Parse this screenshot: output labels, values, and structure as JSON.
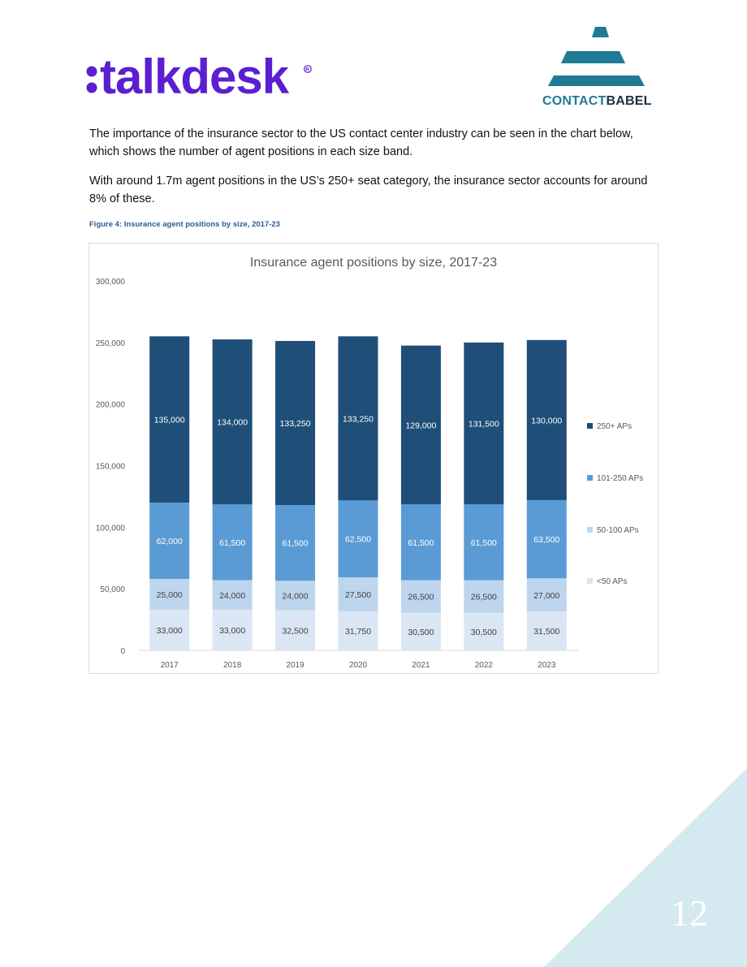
{
  "logos": {
    "talkdesk": "talkdesk",
    "contactbabel_part1": "CONTACT",
    "contactbabel_part2": "BABEL"
  },
  "paragraphs": [
    "The importance of the insurance sector to the US contact center industry can be seen in the chart below, which shows the number of agent positions in each size band.",
    "With around 1.7m agent positions in the US’s 250+ seat category, the insurance sector accounts for around 8% of these."
  ],
  "figure_caption": "Figure 4: Insurance agent positions by size, 2017-23",
  "page_number": "12",
  "colors": {
    "talkdesk_purple": "#5b1fd1",
    "contactbabel_teal": "#1f7b94",
    "corner_triangle": "#d4e9f0"
  },
  "chart_data": {
    "type": "bar",
    "stacked": true,
    "title": "Insurance agent positions by size, 2017-23",
    "categories": [
      "2017",
      "2018",
      "2019",
      "2020",
      "2021",
      "2022",
      "2023"
    ],
    "series": [
      {
        "name": "<50 APs",
        "color": "#dae6f3",
        "values": [
          33000,
          33000,
          32500,
          31750,
          30500,
          30500,
          31500
        ]
      },
      {
        "name": "50-100 APs",
        "color": "#bdd6ee",
        "values": [
          25000,
          24000,
          24000,
          27500,
          26500,
          26500,
          27000
        ]
      },
      {
        "name": "101-250 APs",
        "color": "#5b9bd5",
        "values": [
          62000,
          61500,
          61500,
          62500,
          61500,
          61500,
          63500
        ]
      },
      {
        "name": "250+ APs",
        "color": "#1f4e79",
        "values": [
          135000,
          134000,
          133250,
          133250,
          129000,
          131500,
          130000
        ]
      }
    ],
    "ylim": [
      0,
      300000
    ],
    "yticks": [
      "0",
      "50,000",
      "100,000",
      "150,000",
      "200,000",
      "250,000",
      "300,000"
    ],
    "value_labels": [
      [
        "33,000",
        "33,000",
        "32,500",
        "31,750",
        "30,500",
        "30,500",
        "31,500"
      ],
      [
        "25,000",
        "24,000",
        "24,000",
        "27,500",
        "26,500",
        "26,500",
        "27,000"
      ],
      [
        "62,000",
        "61,500",
        "61,500",
        "62,500",
        "61,500",
        "61,500",
        "63,500"
      ],
      [
        "135,000",
        "134,000",
        "133,250",
        "133,250",
        "129,000",
        "131,500",
        "130,000"
      ]
    ],
    "legend_position": "right",
    "grid": false
  }
}
